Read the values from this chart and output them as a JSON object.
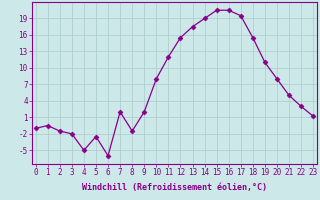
{
  "xlabel": "Windchill (Refroidissement éolien,°C)",
  "x": [
    0,
    1,
    2,
    3,
    4,
    5,
    6,
    7,
    8,
    9,
    10,
    11,
    12,
    13,
    14,
    15,
    16,
    17,
    18,
    19,
    20,
    21,
    22,
    23
  ],
  "y": [
    -1.0,
    -0.5,
    -1.5,
    -2.0,
    -5.0,
    -2.5,
    -6.0,
    2.0,
    -1.5,
    2.0,
    8.0,
    12.0,
    15.5,
    17.5,
    19.0,
    20.5,
    20.5,
    19.5,
    15.5,
    11.0,
    8.0,
    5.0,
    3.0,
    1.2
  ],
  "line_color": "#880088",
  "marker": "D",
  "markersize": 2.5,
  "bg_color": "#cce8e8",
  "grid_color": "#aacccc",
  "yticks": [
    -5,
    -2,
    1,
    4,
    7,
    10,
    13,
    16,
    19
  ],
  "ylim": [
    -7.5,
    22
  ],
  "xlim": [
    -0.3,
    23.3
  ],
  "axis_fontsize": 6.0,
  "tick_fontsize": 5.5
}
